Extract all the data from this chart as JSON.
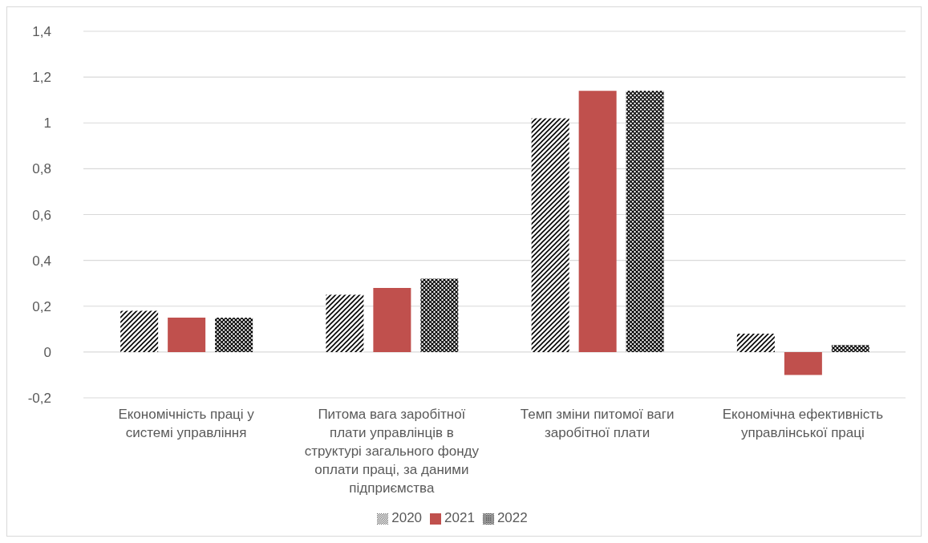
{
  "chart_data": {
    "type": "bar",
    "categories": [
      "Економічність праці у системі управління",
      "Питома вага заробітної плати управлінців в структурі загального фонду оплати праці, за даними підприємства",
      "Темп зміни питомої ваги заробітної плати",
      "Економічна ефективність управлінської праці"
    ],
    "series": [
      {
        "name": "2020",
        "color": "#000000",
        "values": [
          0.18,
          0.25,
          1.02,
          0.08
        ]
      },
      {
        "name": "2021",
        "color": "#c0504d",
        "values": [
          0.15,
          0.28,
          1.14,
          -0.1
        ]
      },
      {
        "name": "2022",
        "color": "#000000",
        "values": [
          0.15,
          0.32,
          1.14,
          0.03
        ]
      }
    ],
    "ylim": [
      -0.2,
      1.4
    ],
    "yticks": [
      {
        "value": -0.2,
        "label": "-0,2"
      },
      0,
      {
        "value": 0.2,
        "label": "0,2"
      },
      {
        "value": 0.4,
        "label": "0,4"
      },
      {
        "value": 0.6,
        "label": "0,6"
      },
      {
        "value": 0.8,
        "label": "0,8"
      },
      1,
      {
        "value": 1.2,
        "label": "1,2"
      },
      {
        "value": 1.4,
        "label": "1,4"
      }
    ],
    "grid": "y",
    "legend": "bottom"
  }
}
